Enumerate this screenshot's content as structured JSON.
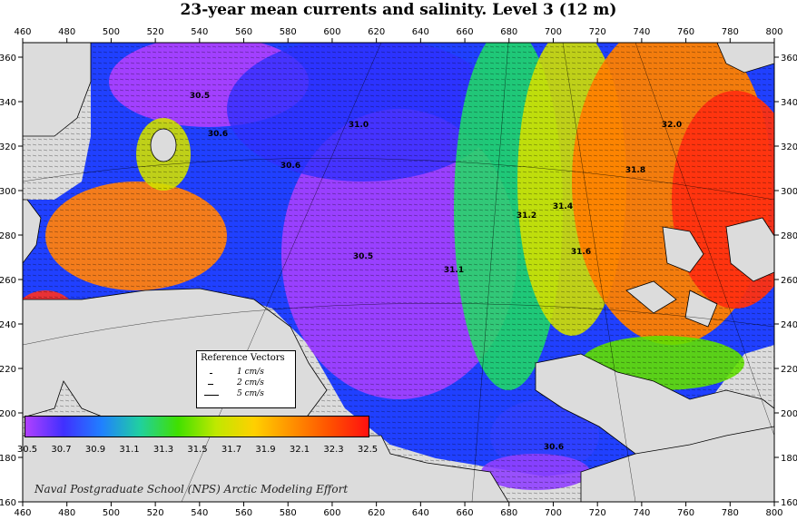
{
  "title": "23-year mean currents and salinity. Level  3 (12 m)",
  "credit": "Naval Postgraduate School (NPS) Arctic Modeling Effort",
  "axes": {
    "x_ticks": [
      "460",
      "480",
      "500",
      "520",
      "540",
      "560",
      "580",
      "600",
      "620",
      "640",
      "660",
      "680",
      "700",
      "720",
      "740",
      "760",
      "780",
      "800"
    ],
    "y_ticks": [
      "360",
      "340",
      "320",
      "300",
      "280",
      "260",
      "240",
      "220",
      "200",
      "180",
      "160"
    ]
  },
  "legend": {
    "title": "Reference Vectors",
    "items": [
      {
        "label": "1 cm/s",
        "speed": 1
      },
      {
        "label": "2 cm/s",
        "speed": 2
      },
      {
        "label": "5 cm/s",
        "speed": 5
      }
    ]
  },
  "colorbar": {
    "labels": [
      "30.5",
      "30.7",
      "30.9",
      "31.1",
      "31.3",
      "31.5",
      "31.7",
      "31.9",
      "32.1",
      "32.3",
      "32.5"
    ],
    "colors": [
      "#b040ff",
      "#4030ff",
      "#2080ff",
      "#20d0a0",
      "#40e000",
      "#c0e800",
      "#ffd000",
      "#ff9000",
      "#ff5000",
      "#ff1010"
    ]
  },
  "contour_labels": [
    {
      "text": "30.5"
    },
    {
      "text": "30.6"
    },
    {
      "text": "30.6"
    },
    {
      "text": "31.0"
    },
    {
      "text": "31.2"
    },
    {
      "text": "31.4"
    },
    {
      "text": "30.5"
    },
    {
      "text": "31.1"
    },
    {
      "text": "30.6"
    },
    {
      "text": "31.8"
    },
    {
      "text": "32.0"
    },
    {
      "text": "31.6"
    }
  ]
}
